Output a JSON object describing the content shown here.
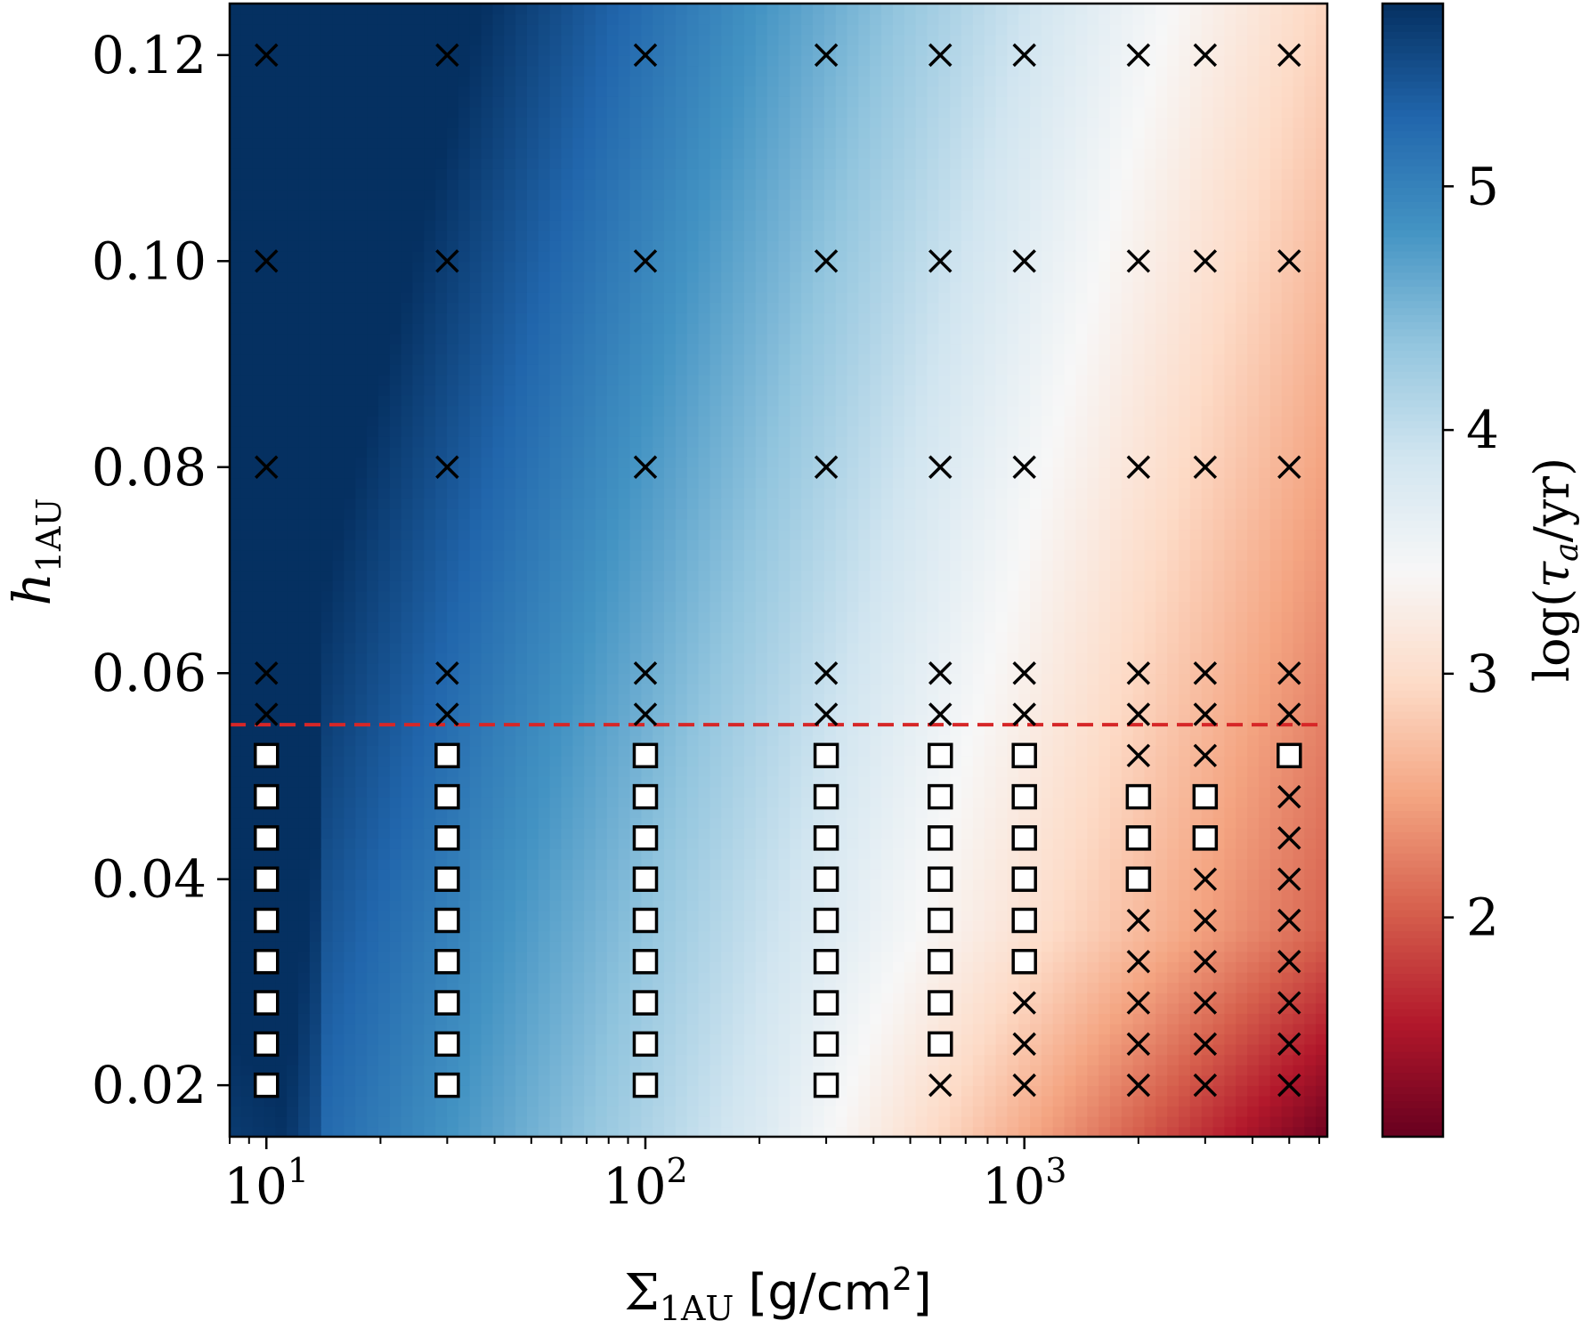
{
  "chart_data": {
    "type": "heatmap",
    "title": "",
    "xlabel": {
      "base": "Σ",
      "sub": "1AU",
      "unit_open": "[g/cm",
      "unit_sup": "2",
      "unit_close": "]"
    },
    "ylabel": {
      "base": "h",
      "sub": "1AU"
    },
    "colorbar_label": {
      "prefix": "log(",
      "tau": "τ",
      "sub": "a",
      "suffix": "/yr)"
    },
    "x_scale": "log",
    "xlim": [
      8,
      6300
    ],
    "ylim": [
      0.015,
      0.125
    ],
    "colorbar_range": [
      1.1,
      5.75
    ],
    "colormap": "RdBu",
    "x_tick_values": [
      10,
      100,
      1000
    ],
    "x_ticks": [
      {
        "base": "10",
        "exp": "1"
      },
      {
        "base": "10",
        "exp": "2"
      },
      {
        "base": "10",
        "exp": "3"
      }
    ],
    "y_ticks": [
      "0.02",
      "0.04",
      "0.06",
      "0.08",
      "0.10",
      "0.12"
    ],
    "y_tick_values": [
      0.02,
      0.04,
      0.06,
      0.08,
      0.1,
      0.12
    ],
    "colorbar_ticks": [
      "2",
      "3",
      "4",
      "5"
    ],
    "colorbar_tick_values": [
      2,
      3,
      4,
      5
    ],
    "threshold_line": {
      "y": 0.055,
      "style": "dashed",
      "color": "#d62728"
    },
    "sigma_values": [
      10,
      30,
      100,
      300,
      600,
      1000,
      2000,
      3000,
      5000
    ],
    "h_values": [
      0.02,
      0.024,
      0.028,
      0.032,
      0.036,
      0.04,
      0.044,
      0.048,
      0.052,
      0.056,
      0.06,
      0.08,
      0.1,
      0.12
    ],
    "marker_legend": {
      "x": "cross marker",
      "s": "open square marker"
    },
    "markers_by_sigma": [
      {
        "sigma": 10,
        "markers": [
          "s",
          "s",
          "s",
          "s",
          "s",
          "s",
          "s",
          "s",
          "s",
          "x",
          "x",
          "x",
          "x",
          "x"
        ]
      },
      {
        "sigma": 30,
        "markers": [
          "s",
          "s",
          "s",
          "s",
          "s",
          "s",
          "s",
          "s",
          "s",
          "x",
          "x",
          "x",
          "x",
          "x"
        ]
      },
      {
        "sigma": 100,
        "markers": [
          "s",
          "s",
          "s",
          "s",
          "s",
          "s",
          "s",
          "s",
          "s",
          "x",
          "x",
          "x",
          "x",
          "x"
        ]
      },
      {
        "sigma": 300,
        "markers": [
          "s",
          "s",
          "s",
          "s",
          "s",
          "s",
          "s",
          "s",
          "s",
          "x",
          "x",
          "x",
          "x",
          "x"
        ]
      },
      {
        "sigma": 600,
        "markers": [
          "x",
          "s",
          "s",
          "s",
          "s",
          "s",
          "s",
          "s",
          "s",
          "x",
          "x",
          "x",
          "x",
          "x"
        ]
      },
      {
        "sigma": 1000,
        "markers": [
          "x",
          "x",
          "x",
          "s",
          "s",
          "s",
          "s",
          "s",
          "s",
          "x",
          "x",
          "x",
          "x",
          "x"
        ]
      },
      {
        "sigma": 2000,
        "markers": [
          "x",
          "x",
          "x",
          "x",
          "x",
          "s",
          "s",
          "s",
          "x",
          "x",
          "x",
          "x",
          "x",
          "x"
        ]
      },
      {
        "sigma": 3000,
        "markers": [
          "x",
          "x",
          "x",
          "x",
          "x",
          "x",
          "s",
          "s",
          "x",
          "x",
          "x",
          "x",
          "x",
          "x"
        ]
      },
      {
        "sigma": 5000,
        "markers": [
          "x",
          "x",
          "x",
          "x",
          "x",
          "x",
          "x",
          "x",
          "s",
          "x",
          "x",
          "x",
          "x",
          "x"
        ]
      }
    ]
  },
  "colors": {
    "low": "#67001f",
    "mid": "#f7f7f7",
    "high": "#053061",
    "marker": "#000000",
    "square_fill": "#ffffff"
  }
}
